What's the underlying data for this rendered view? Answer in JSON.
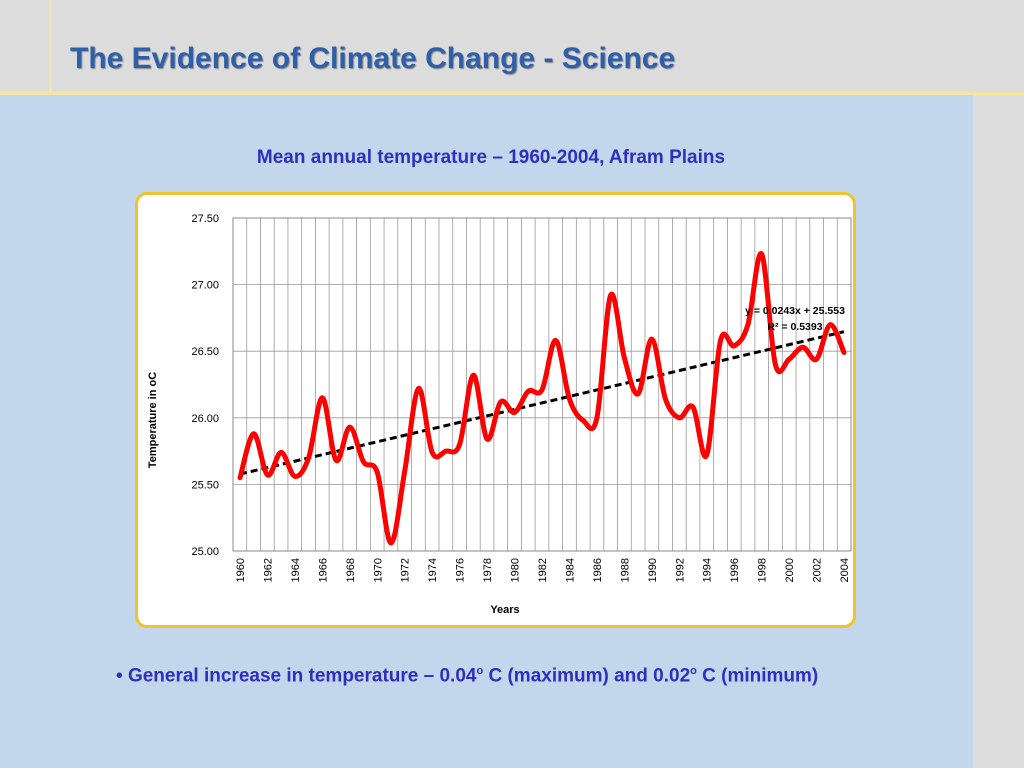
{
  "header": {
    "title": "The Evidence of Climate Change - Science"
  },
  "chart_heading": "Mean annual temperature – 1960-2004,  Afram Plains",
  "chart_data": {
    "type": "line",
    "title": "",
    "xlabel": "Years",
    "ylabel": "Temperature in oC",
    "ylim": [
      25.0,
      27.5
    ],
    "yticks": [
      "25.00",
      "25.50",
      "26.00",
      "26.50",
      "27.00",
      "27.50"
    ],
    "x": [
      1960,
      1961,
      1962,
      1963,
      1964,
      1965,
      1966,
      1967,
      1968,
      1969,
      1970,
      1971,
      1972,
      1973,
      1974,
      1975,
      1976,
      1977,
      1978,
      1979,
      1980,
      1981,
      1982,
      1983,
      1984,
      1985,
      1986,
      1987,
      1988,
      1989,
      1990,
      1991,
      1992,
      1993,
      1994,
      1995,
      1996,
      1997,
      1998,
      1999,
      2000,
      2001,
      2002,
      2003,
      2004
    ],
    "xtick_labels": [
      "1960",
      "1962",
      "1964",
      "1966",
      "1968",
      "1970",
      "1972",
      "1974",
      "1976",
      "1978",
      "1980",
      "1982",
      "1984",
      "1986",
      "1988",
      "1990",
      "1992",
      "1994",
      "1996",
      "1998",
      "2000",
      "2002",
      "2004"
    ],
    "series": [
      {
        "color": "#ff0000",
        "values": [
          25.55,
          25.88,
          25.57,
          25.74,
          25.56,
          25.7,
          26.15,
          25.68,
          25.93,
          25.67,
          25.59,
          25.06,
          25.6,
          26.22,
          25.74,
          25.75,
          25.8,
          26.32,
          25.84,
          26.12,
          26.04,
          26.2,
          26.21,
          26.58,
          26.14,
          25.98,
          26.0,
          26.92,
          26.45,
          26.18,
          26.59,
          26.14,
          26.0,
          26.08,
          25.72,
          26.58,
          26.54,
          26.7,
          27.23,
          26.4,
          26.44,
          26.53,
          26.44,
          26.7,
          26.49
        ]
      }
    ],
    "trendline": {
      "color": "#000000",
      "style": "dashed",
      "slope": 0.0243,
      "intercept": 25.553,
      "equation_label": "y = 0.0243x + 25.553",
      "r2_label": "R² = 0.5393"
    },
    "grid": true,
    "legend": "none"
  },
  "bullet": {
    "marker": "•",
    "part1": "General increase in temperature – 0.04",
    "sup1": "o",
    "part2": " C (maximum) and 0.02",
    "sup2": "o",
    "part3": " C (minimum)"
  }
}
